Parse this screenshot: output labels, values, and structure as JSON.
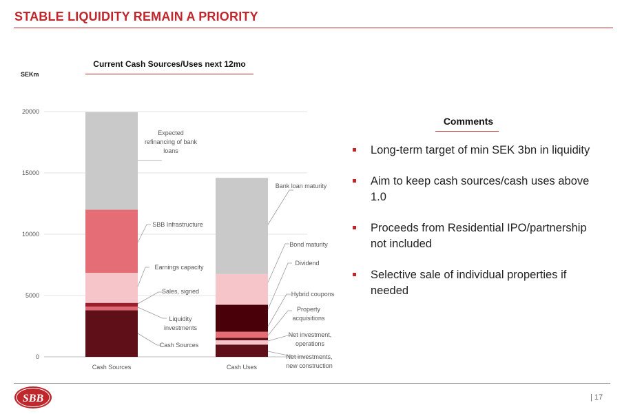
{
  "slide": {
    "title": "STABLE LIQUIDITY REMAIN A PRIORITY",
    "page_number": "| 17",
    "logo_text": "SBB"
  },
  "comments": {
    "title": "Comments",
    "bullets": [
      "Long-term target of min SEK 3bn in liquidity",
      "Aim to keep cash sources/cash uses above 1.0",
      "Proceeds from Residential IPO/partnership not included",
      "Selective sale of individual properties if needed"
    ]
  },
  "chart_data": {
    "type": "bar",
    "stacked": true,
    "title": "Current Cash Sources/Uses next 12mo",
    "ylabel": "SEKm",
    "ylim": [
      0,
      20000
    ],
    "yticks": [
      0,
      5000,
      10000,
      15000,
      20000
    ],
    "grid": true,
    "categories": [
      "Cash Sources",
      "Cash Uses"
    ],
    "stacks": [
      {
        "category": "Cash Sources",
        "segments": [
          {
            "name": "Cash Sources",
            "value": 3800,
            "color": "#5e0f18"
          },
          {
            "name": "Liquidity investments",
            "value": 300,
            "color": "#e06872"
          },
          {
            "name": "Sales, signed",
            "value": 300,
            "color": "#9a1f2c"
          },
          {
            "name": "Earnings capacity",
            "value": 2450,
            "color": "#f5c5ca"
          },
          {
            "name": "SBB Infrastructure",
            "value": 5150,
            "color": "#e56d76"
          },
          {
            "name": "Expected refinancing of bank loans",
            "value": 7950,
            "color": "#c9c9c9"
          }
        ]
      },
      {
        "category": "Cash Uses",
        "segments": [
          {
            "name": "Net investments, new construction",
            "value": 1000,
            "color": "#5e0f18"
          },
          {
            "name": "Net investment, operations",
            "value": 350,
            "color": "#f5c5ca"
          },
          {
            "name": "Property acquisitions",
            "value": 200,
            "color": "#5e0f18"
          },
          {
            "name": "Hybrid coupons",
            "value": 500,
            "color": "#e56d76"
          },
          {
            "name": "Dividend",
            "value": 2200,
            "color": "#4a0008"
          },
          {
            "name": "Bond maturity",
            "value": 2500,
            "color": "#f5c5ca"
          },
          {
            "name": "Bank loan maturity",
            "value": 7850,
            "color": "#c9c9c9"
          }
        ]
      }
    ],
    "annotations": {
      "Cash Sources": [
        {
          "lines": [
            "Expected",
            "refinancing of bank",
            "loans"
          ]
        },
        {
          "lines": [
            "SBB Infrastructure"
          ]
        },
        {
          "lines": [
            "Earnings capacity"
          ]
        },
        {
          "lines": [
            "Sales, signed"
          ]
        },
        {
          "lines": [
            "Liquidity",
            "investments"
          ]
        },
        {
          "lines": [
            "Cash Sources"
          ]
        }
      ],
      "Cash Uses": [
        {
          "lines": [
            "Bank loan maturity"
          ]
        },
        {
          "lines": [
            "Bond maturity"
          ]
        },
        {
          "lines": [
            "Dividend"
          ]
        },
        {
          "lines": [
            "Hybrid coupons"
          ]
        },
        {
          "lines": [
            "Property",
            "acquisitions"
          ]
        },
        {
          "lines": [
            "Net investment,",
            "operations"
          ]
        },
        {
          "lines": [
            "Net investments,",
            "new construction"
          ]
        }
      ]
    }
  }
}
